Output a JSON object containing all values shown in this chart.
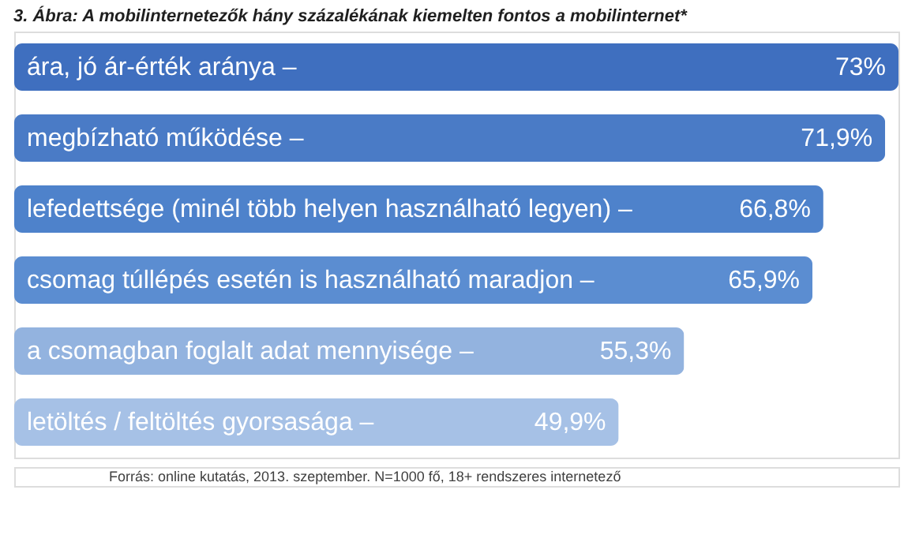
{
  "chart_data": {
    "type": "bar",
    "orientation": "horizontal",
    "title": "3. Ábra: A mobilinternetezők hány százalékának kiemelten fontos a mobilinternet*",
    "categories": [
      "ára, jó ár-érték aránya –",
      "megbízható működése –",
      "lefedettsége (minél több helyen használható legyen) –",
      "csomag túllépés esetén is használható maradjon –",
      "a csomagban foglalt adat mennyisége –",
      "letöltés / feltöltés gyorsasága –"
    ],
    "values": [
      73,
      71.9,
      66.8,
      65.9,
      55.3,
      49.9
    ],
    "value_labels": [
      "73%",
      "71,9%",
      "66,8%",
      "65,9%",
      "55,3%",
      "49,9%"
    ],
    "colors": [
      "#3f6fbf",
      "#4a7bc6",
      "#4e82cb",
      "#5b8dd1",
      "#93b3df",
      "#a6c1e6"
    ],
    "annotations": [
      "Forrás: online kutatás, 2013. szeptember. N=1000 fő, 18+ rendszeres internetező"
    ]
  }
}
